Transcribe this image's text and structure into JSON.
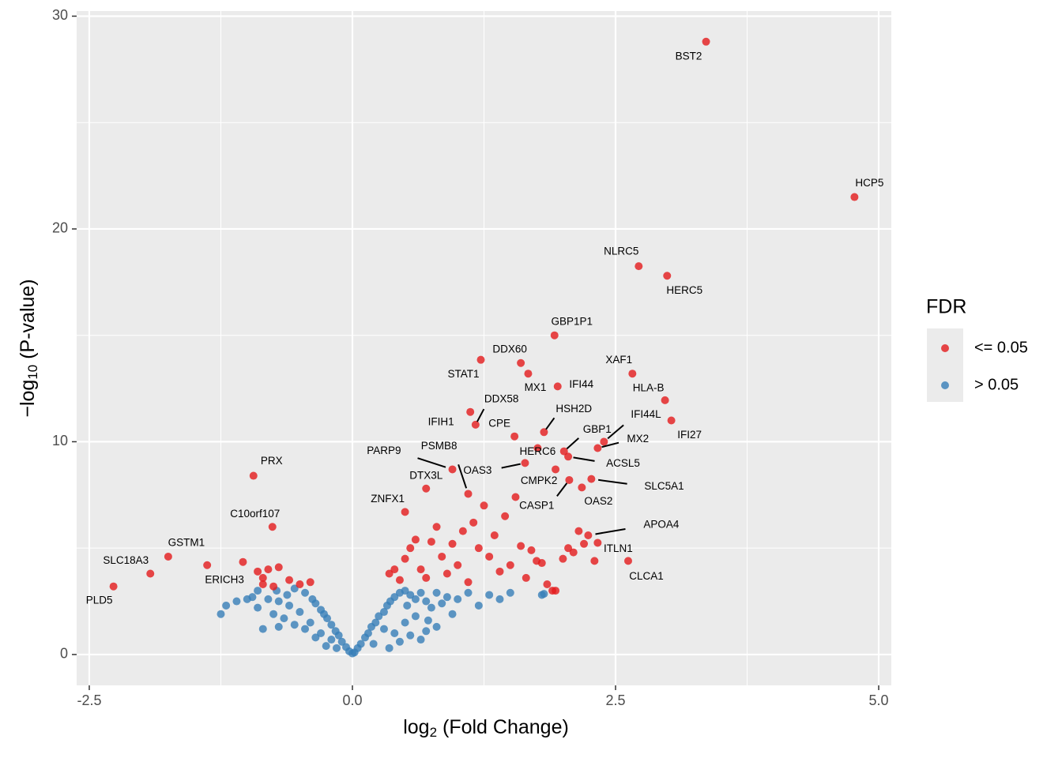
{
  "chart_data": {
    "type": "scatter",
    "x_label": {
      "base": "log",
      "sub": "2",
      "rest": " (Fold Change)"
    },
    "y_label": {
      "base": "−log",
      "sub": "10",
      "rest": " (P-value)"
    },
    "legend_title": "FDR",
    "legend": "right",
    "grid": true,
    "xlim": [
      -2.62,
      5.12
    ],
    "ylim": [
      -1.45,
      30.24
    ],
    "xticks": [
      -2.5,
      {
        "value": 0,
        "label": "0.0"
      },
      2.5,
      {
        "value": 5,
        "label": "5.0"
      }
    ],
    "yticks": [
      0,
      10,
      20,
      30
    ],
    "series": [
      {
        "name": "<= 0.05",
        "color": "#e41a1c",
        "x": [
          3.36,
          4.77,
          2.72,
          2.99,
          1.92,
          1.6,
          1.22,
          1.67,
          1.95,
          2.66,
          2.97,
          3.03,
          1.17,
          1.12,
          1.54,
          1.82,
          2.01,
          2.39,
          2.33,
          1.76,
          2.05,
          1.64,
          0.95,
          1.1,
          0.7,
          1.93,
          2.06,
          2.27,
          2.18,
          0.5,
          2.24,
          2.33,
          2.62,
          -0.94,
          -0.76,
          -1.75,
          -1.92,
          -1.38,
          -2.27,
          -0.8,
          -0.85,
          -0.9,
          -0.6,
          -0.5,
          -0.75,
          -0.4,
          -0.85,
          -1.04,
          -0.7,
          0.35,
          0.4,
          0.45,
          0.5,
          0.55,
          0.6,
          0.65,
          0.7,
          0.75,
          0.8,
          0.85,
          0.9,
          0.95,
          1.0,
          1.05,
          1.1,
          1.15,
          1.2,
          1.25,
          1.3,
          1.35,
          1.4,
          1.45,
          1.5,
          1.55,
          1.6,
          1.65,
          1.7,
          1.75,
          1.8,
          1.85,
          1.9,
          1.93,
          2.0,
          2.05,
          2.1,
          2.15,
          2.2,
          2.3
        ],
        "values": [
          28.8,
          21.5,
          18.25,
          17.8,
          15.0,
          13.7,
          13.85,
          13.2,
          12.6,
          13.2,
          11.95,
          11.0,
          10.8,
          11.4,
          10.25,
          10.45,
          9.55,
          10.0,
          9.7,
          9.7,
          9.3,
          9.0,
          8.7,
          7.55,
          7.8,
          8.7,
          8.2,
          8.25,
          7.85,
          6.7,
          5.6,
          5.25,
          4.4,
          8.4,
          6.0,
          4.6,
          3.8,
          4.2,
          3.2,
          4.0,
          3.6,
          3.9,
          3.5,
          3.3,
          3.2,
          3.4,
          3.3,
          4.35,
          4.1,
          3.8,
          4.0,
          3.5,
          4.5,
          5.0,
          5.4,
          4.0,
          3.6,
          5.3,
          6.0,
          4.6,
          3.8,
          5.2,
          4.2,
          5.8,
          3.4,
          6.2,
          5.0,
          7.0,
          4.6,
          5.6,
          3.9,
          6.5,
          4.2,
          7.4,
          5.1,
          3.6,
          4.9,
          4.4,
          4.3,
          3.3,
          3.0,
          3.0,
          4.5,
          5.0,
          4.8,
          5.8,
          5.2,
          4.4
        ],
        "labels": [
          "BST2",
          "HCP5",
          "NLRC5",
          "HERC5",
          "GBP1P1",
          "DDX60",
          "STAT1",
          "MX1",
          "IFI44",
          "XAF1",
          "HLA-B",
          "IFI27",
          "DDX58",
          "IFIH1",
          "CPE",
          "HSH2D",
          "GBP1",
          "IFI44L",
          "MX2",
          "HERC6",
          "ACSL5",
          "OAS3",
          "PARP9",
          "PSMB8",
          "DTX3L",
          "CMPK2",
          "CASP1",
          "SLC5A1",
          "OAS2",
          "ZNFX1",
          "APOA4",
          "ITLN1",
          "CLCA1",
          "PRX",
          "C10orf107",
          "GSTM1",
          "SLC18A3",
          "ERICH3",
          "PLD5",
          null,
          null,
          null,
          null,
          null,
          null,
          null,
          null,
          null,
          null,
          null,
          null,
          null,
          null,
          null,
          null,
          null,
          null,
          null,
          null,
          null,
          null,
          null,
          null,
          null,
          null,
          null,
          null,
          null,
          null,
          null,
          null,
          null,
          null,
          null,
          null,
          null,
          null,
          null,
          null,
          null,
          null,
          null,
          null,
          null,
          null,
          null,
          null,
          null,
          null
        ]
      },
      {
        "name": "> 0.05",
        "color": "#377eb8",
        "x": [
          0,
          0.02,
          -0.03,
          0.05,
          -0.06,
          0.08,
          -0.1,
          0.12,
          -0.13,
          0.15,
          -0.16,
          0.18,
          -0.2,
          0.22,
          -0.24,
          0.25,
          -0.27,
          0.3,
          -0.3,
          0.33,
          -0.35,
          0.36,
          -0.38,
          0.4,
          0.45,
          0.5,
          0.55,
          0.6,
          0.65,
          0.7,
          0.75,
          0.8,
          0.85,
          0.9,
          1.0,
          1.1,
          1.2,
          1.3,
          1.4,
          1.5,
          1.8,
          0.2,
          0.3,
          0.4,
          0.5,
          0.6,
          0.7,
          0.35,
          0.45,
          0.55,
          0.65,
          0.8,
          0.95,
          -0.15,
          -0.2,
          -0.25,
          -0.3,
          -0.35,
          -0.4,
          -0.45,
          -0.5,
          -0.55,
          -0.6,
          -0.65,
          -0.7,
          -0.75,
          -0.8,
          -0.85,
          -0.9,
          -0.95,
          -0.72,
          -0.55,
          -0.45,
          -0.62,
          -0.7,
          -1.0,
          -1.1,
          -1.2,
          -1.25,
          -0.9,
          0.72,
          0.52,
          1.82
        ],
        "values": [
          0.05,
          0.1,
          0.15,
          0.3,
          0.35,
          0.5,
          0.6,
          0.8,
          0.9,
          1.0,
          1.1,
          1.3,
          1.4,
          1.5,
          1.7,
          1.8,
          1.9,
          2.0,
          2.1,
          2.3,
          2.4,
          2.5,
          2.6,
          2.7,
          2.9,
          3.0,
          2.8,
          2.6,
          2.9,
          2.5,
          2.2,
          2.9,
          2.4,
          2.7,
          2.6,
          2.9,
          2.3,
          2.8,
          2.6,
          2.9,
          2.8,
          0.5,
          1.2,
          1.0,
          1.5,
          1.8,
          1.1,
          0.3,
          0.6,
          0.9,
          0.7,
          1.3,
          1.9,
          0.3,
          0.7,
          0.4,
          1.0,
          0.8,
          1.5,
          1.2,
          2.0,
          1.4,
          2.3,
          1.7,
          2.5,
          1.9,
          2.6,
          1.2,
          2.2,
          2.7,
          3.0,
          3.1,
          2.9,
          2.8,
          1.3,
          2.6,
          2.5,
          2.3,
          1.9,
          3.0,
          1.6,
          2.3,
          2.85
        ]
      }
    ]
  }
}
